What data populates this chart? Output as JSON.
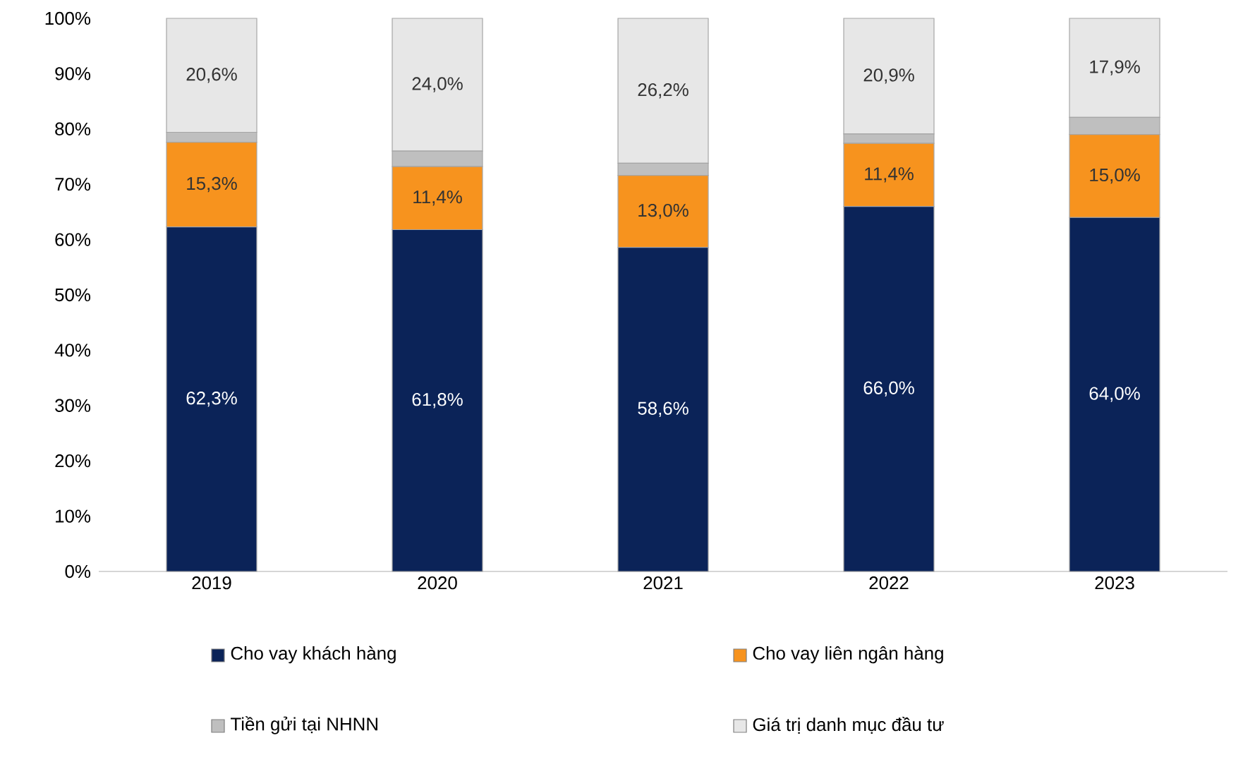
{
  "chart_data": {
    "type": "bar",
    "stacked": true,
    "categories": [
      "2019",
      "2020",
      "2021",
      "2022",
      "2023"
    ],
    "series": [
      {
        "name": "Cho vay khách hàng",
        "color": "#0b2358",
        "values": [
          62.3,
          61.8,
          58.6,
          66.0,
          64.0
        ],
        "value_labels": [
          "62,3%",
          "61,8%",
          "58,6%",
          "66,0%",
          "64,0%"
        ]
      },
      {
        "name": "Cho vay liên ngân hàng",
        "color": "#f7931e",
        "values": [
          15.3,
          11.4,
          13.0,
          11.4,
          15.0
        ],
        "value_labels": [
          "15,3%",
          "11,4%",
          "13,0%",
          "11,4%",
          "15,0%"
        ]
      },
      {
        "name": "Tiền gửi tại NHNN",
        "color": "#bfbfbf",
        "values": [
          1.8,
          2.8,
          2.2,
          1.7,
          3.1
        ]
      },
      {
        "name": "Giá trị danh mục đầu tư",
        "color": "#e7e7e7",
        "values": [
          20.6,
          24.0,
          26.2,
          20.9,
          17.9
        ],
        "value_labels": [
          "20,6%",
          "24,0%",
          "26,2%",
          "20,9%",
          "17,9%"
        ]
      }
    ],
    "ylim": [
      0,
      100
    ],
    "yticks": [
      {
        "value": 0,
        "label": "0%"
      },
      {
        "value": 10,
        "label": "10%"
      },
      {
        "value": 20,
        "label": "20%"
      },
      {
        "value": 30,
        "label": "30%"
      },
      {
        "value": 40,
        "label": "40%"
      },
      {
        "value": 50,
        "label": "50%"
      },
      {
        "value": 60,
        "label": "60%"
      },
      {
        "value": 70,
        "label": "70%"
      },
      {
        "value": 80,
        "label": "80%"
      },
      {
        "value": 90,
        "label": "90%"
      },
      {
        "value": 100,
        "label": "100%"
      }
    ],
    "grid": false,
    "legend": "bottom"
  }
}
